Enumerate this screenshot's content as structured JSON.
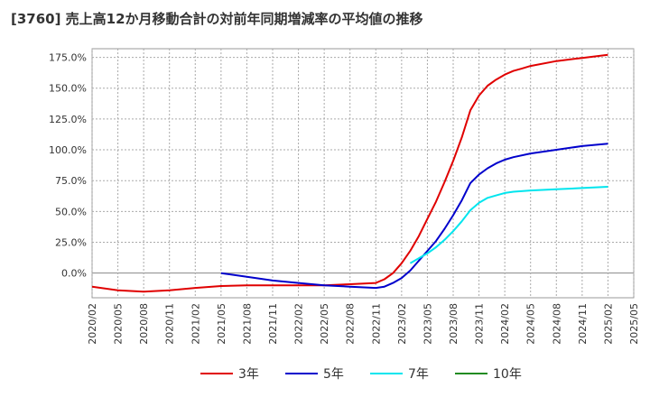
{
  "chart_data": {
    "type": "line",
    "title": "[3760]  売上高12か月移動合計の対前年同期増減率の平均値の推移",
    "xlabel": "",
    "ylabel": "",
    "ylim": [
      -20,
      182
    ],
    "y_ticks": [
      "175.0%",
      "150.0%",
      "125.0%",
      "100.0%",
      "75.0%",
      "50.0%",
      "25.0%",
      "0.0%"
    ],
    "y_tick_values": [
      175,
      150,
      125,
      100,
      75,
      50,
      25,
      0
    ],
    "x_ticks": [
      "2020/02",
      "2020/05",
      "2020/08",
      "2020/11",
      "2021/02",
      "2021/05",
      "2021/08",
      "2021/11",
      "2022/02",
      "2022/05",
      "2022/08",
      "2022/11",
      "2023/02",
      "2023/05",
      "2023/08",
      "2023/11",
      "2024/02",
      "2024/05",
      "2024/08",
      "2024/11",
      "2025/02",
      "2025/05"
    ],
    "grid": true,
    "legend_position": "bottom",
    "series": [
      {
        "name": "3年",
        "color": "#e00000",
        "x": [
          "2020/02",
          "2020/05",
          "2020/08",
          "2020/11",
          "2021/02",
          "2021/05",
          "2021/08",
          "2021/11",
          "2022/02",
          "2022/05",
          "2022/08",
          "2022/11",
          "2022/12",
          "2023/01",
          "2023/02",
          "2023/03",
          "2023/04",
          "2023/05",
          "2023/06",
          "2023/07",
          "2023/08",
          "2023/09",
          "2023/10",
          "2023/11",
          "2023/12",
          "2024/01",
          "2024/02",
          "2024/03",
          "2024/04",
          "2024/05",
          "2024/08",
          "2024/11",
          "2025/02"
        ],
        "values": [
          -11,
          -14,
          -15,
          -14,
          -12,
          -10.5,
          -10,
          -10,
          -10,
          -10,
          -9,
          -8,
          -5,
          0,
          8,
          18,
          30,
          44,
          58,
          74,
          91,
          110,
          132,
          144,
          152,
          157,
          161,
          164,
          166,
          168,
          172,
          174.5,
          177
        ]
      },
      {
        "name": "5年",
        "color": "#0000cc",
        "x": [
          "2021/05",
          "2021/08",
          "2021/11",
          "2022/02",
          "2022/05",
          "2022/08",
          "2022/11",
          "2022/12",
          "2023/01",
          "2023/02",
          "2023/03",
          "2023/04",
          "2023/05",
          "2023/06",
          "2023/07",
          "2023/08",
          "2023/09",
          "2023/10",
          "2023/11",
          "2023/12",
          "2024/01",
          "2024/02",
          "2024/03",
          "2024/05",
          "2024/08",
          "2024/11",
          "2025/02"
        ],
        "values": [
          0,
          -3,
          -6,
          -8,
          -10,
          -11,
          -12,
          -11,
          -8,
          -4,
          2,
          10,
          18,
          26,
          36,
          47,
          59,
          73,
          80,
          85,
          89,
          92,
          94,
          97,
          100,
          103,
          105
        ]
      },
      {
        "name": "7年",
        "color": "#00e5ee",
        "x": [
          "2023/03",
          "2023/04",
          "2023/05",
          "2023/06",
          "2023/07",
          "2023/08",
          "2023/09",
          "2023/10",
          "2023/11",
          "2023/12",
          "2024/01",
          "2024/02",
          "2024/03",
          "2024/05",
          "2024/08",
          "2024/11",
          "2025/02"
        ],
        "values": [
          8,
          12,
          16,
          21,
          27,
          34,
          42,
          51,
          57,
          61,
          63,
          65,
          66,
          67,
          68,
          69,
          70
        ]
      },
      {
        "name": "10年",
        "color": "#228b22",
        "x": [],
        "values": []
      }
    ]
  }
}
